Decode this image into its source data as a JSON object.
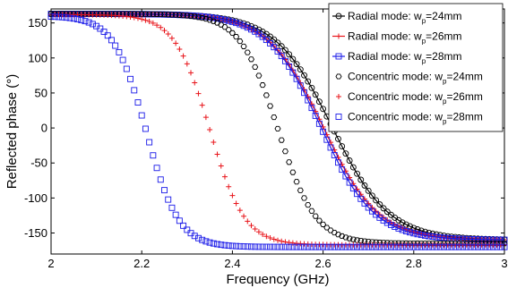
{
  "chart_data": {
    "type": "line",
    "title": "",
    "xlabel": "Frequency (GHz)",
    "ylabel": "Reflected phase (°)",
    "xlim": [
      2,
      3
    ],
    "ylim": [
      -180,
      170
    ],
    "xticks": [
      2,
      2.2,
      2.4,
      2.6,
      2.8,
      3
    ],
    "xtick_labels": [
      "2",
      "2.2",
      "2.4",
      "2.6",
      "2.8",
      "3"
    ],
    "yticks": [
      -150,
      -100,
      -50,
      0,
      50,
      100,
      150
    ],
    "ytick_labels": [
      "-150",
      "-100",
      "-50",
      "0",
      "50",
      "100",
      "150"
    ],
    "grid": false,
    "legend_position": "top-right",
    "series": [
      {
        "name": "Radial mode: w=24mm",
        "label_prefix": "Radial mode: w",
        "label_sub": "p",
        "label_suffix": "=24mm",
        "color": "#000000",
        "marker": "circle-line",
        "f0": 2.62,
        "k": 16.0,
        "hi": 163,
        "lo": -160,
        "x": [
          2.0,
          2.1,
          2.2,
          2.3,
          2.4,
          2.5,
          2.55,
          2.6,
          2.62,
          2.65,
          2.7,
          2.8,
          2.9,
          3.0
        ],
        "y": [
          162,
          161,
          159,
          155,
          145,
          118,
          92,
          38,
          2,
          -52,
          -98,
          -138,
          -151,
          -157
        ]
      },
      {
        "name": "Radial mode: w=26mm",
        "label_prefix": "Radial mode: w",
        "label_sub": "p",
        "label_suffix": "=26mm",
        "color": "#e8141a",
        "marker": "plus-line",
        "f0": 2.6,
        "k": 16.5,
        "hi": 163,
        "lo": -160,
        "x": [
          2.0,
          2.1,
          2.2,
          2.3,
          2.4,
          2.5,
          2.55,
          2.6,
          2.65,
          2.7,
          2.8,
          2.9,
          3.0
        ],
        "y": [
          162,
          161,
          158,
          152,
          140,
          105,
          62,
          1,
          -58,
          -103,
          -142,
          -154,
          -158
        ]
      },
      {
        "name": "Radial mode: w=28mm",
        "label_prefix": "Radial mode: w",
        "label_sub": "p",
        "label_suffix": "=28mm",
        "color": "#1a1ae8",
        "marker": "square-line",
        "f0": 2.595,
        "k": 17.0,
        "hi": 163,
        "lo": -160,
        "x": [
          2.0,
          2.1,
          2.2,
          2.3,
          2.4,
          2.5,
          2.55,
          2.6,
          2.65,
          2.7,
          2.8,
          2.9,
          3.0
        ],
        "y": [
          162,
          160,
          157,
          151,
          138,
          100,
          56,
          -8,
          -64,
          -108,
          -144,
          -155,
          -158
        ]
      },
      {
        "name": "Concentric mode: w=24mm",
        "label_prefix": "Concentric mode: w",
        "label_sub": "p",
        "label_suffix": "=24mm",
        "color": "#000000",
        "marker": "hexagon",
        "f0": 2.5,
        "k": 24.0,
        "hi": 163,
        "lo": -165,
        "x": [
          2.0,
          2.1,
          2.2,
          2.3,
          2.4,
          2.45,
          2.5,
          2.55,
          2.6,
          2.7,
          2.8,
          2.9,
          3.0
        ],
        "y": [
          163,
          162,
          159,
          152,
          125,
          85,
          0,
          -85,
          -128,
          -153,
          -160,
          -162,
          -164
        ]
      },
      {
        "name": "Concentric mode: w=26mm",
        "label_prefix": "Concentric mode: w",
        "label_sub": "p",
        "label_suffix": "=26mm",
        "color": "#e8141a",
        "marker": "plus",
        "f0": 2.35,
        "k": 26.0,
        "hi": 162,
        "lo": -167,
        "x": [
          2.0,
          2.1,
          2.2,
          2.3,
          2.35,
          2.4,
          2.5,
          2.6,
          2.7,
          2.8,
          2.9,
          3.0
        ],
        "y": [
          160,
          157,
          146,
          95,
          0,
          -92,
          -146,
          -158,
          -162,
          -164,
          -165,
          -166
        ]
      },
      {
        "name": "Concentric mode: w=28mm",
        "label_prefix": "Concentric mode: w",
        "label_sub": "p",
        "label_suffix": "=28mm",
        "color": "#1a1ae8",
        "marker": "square",
        "f0": 2.21,
        "k": 28.0,
        "hi": 160,
        "lo": -170,
        "x": [
          2.0,
          2.1,
          2.15,
          2.2,
          2.21,
          2.25,
          2.3,
          2.4,
          2.5,
          2.6,
          2.8,
          3.0
        ],
        "y": [
          150,
          137,
          112,
          30,
          0,
          -110,
          -148,
          -163,
          -166,
          -168,
          -169,
          -170
        ]
      }
    ]
  }
}
